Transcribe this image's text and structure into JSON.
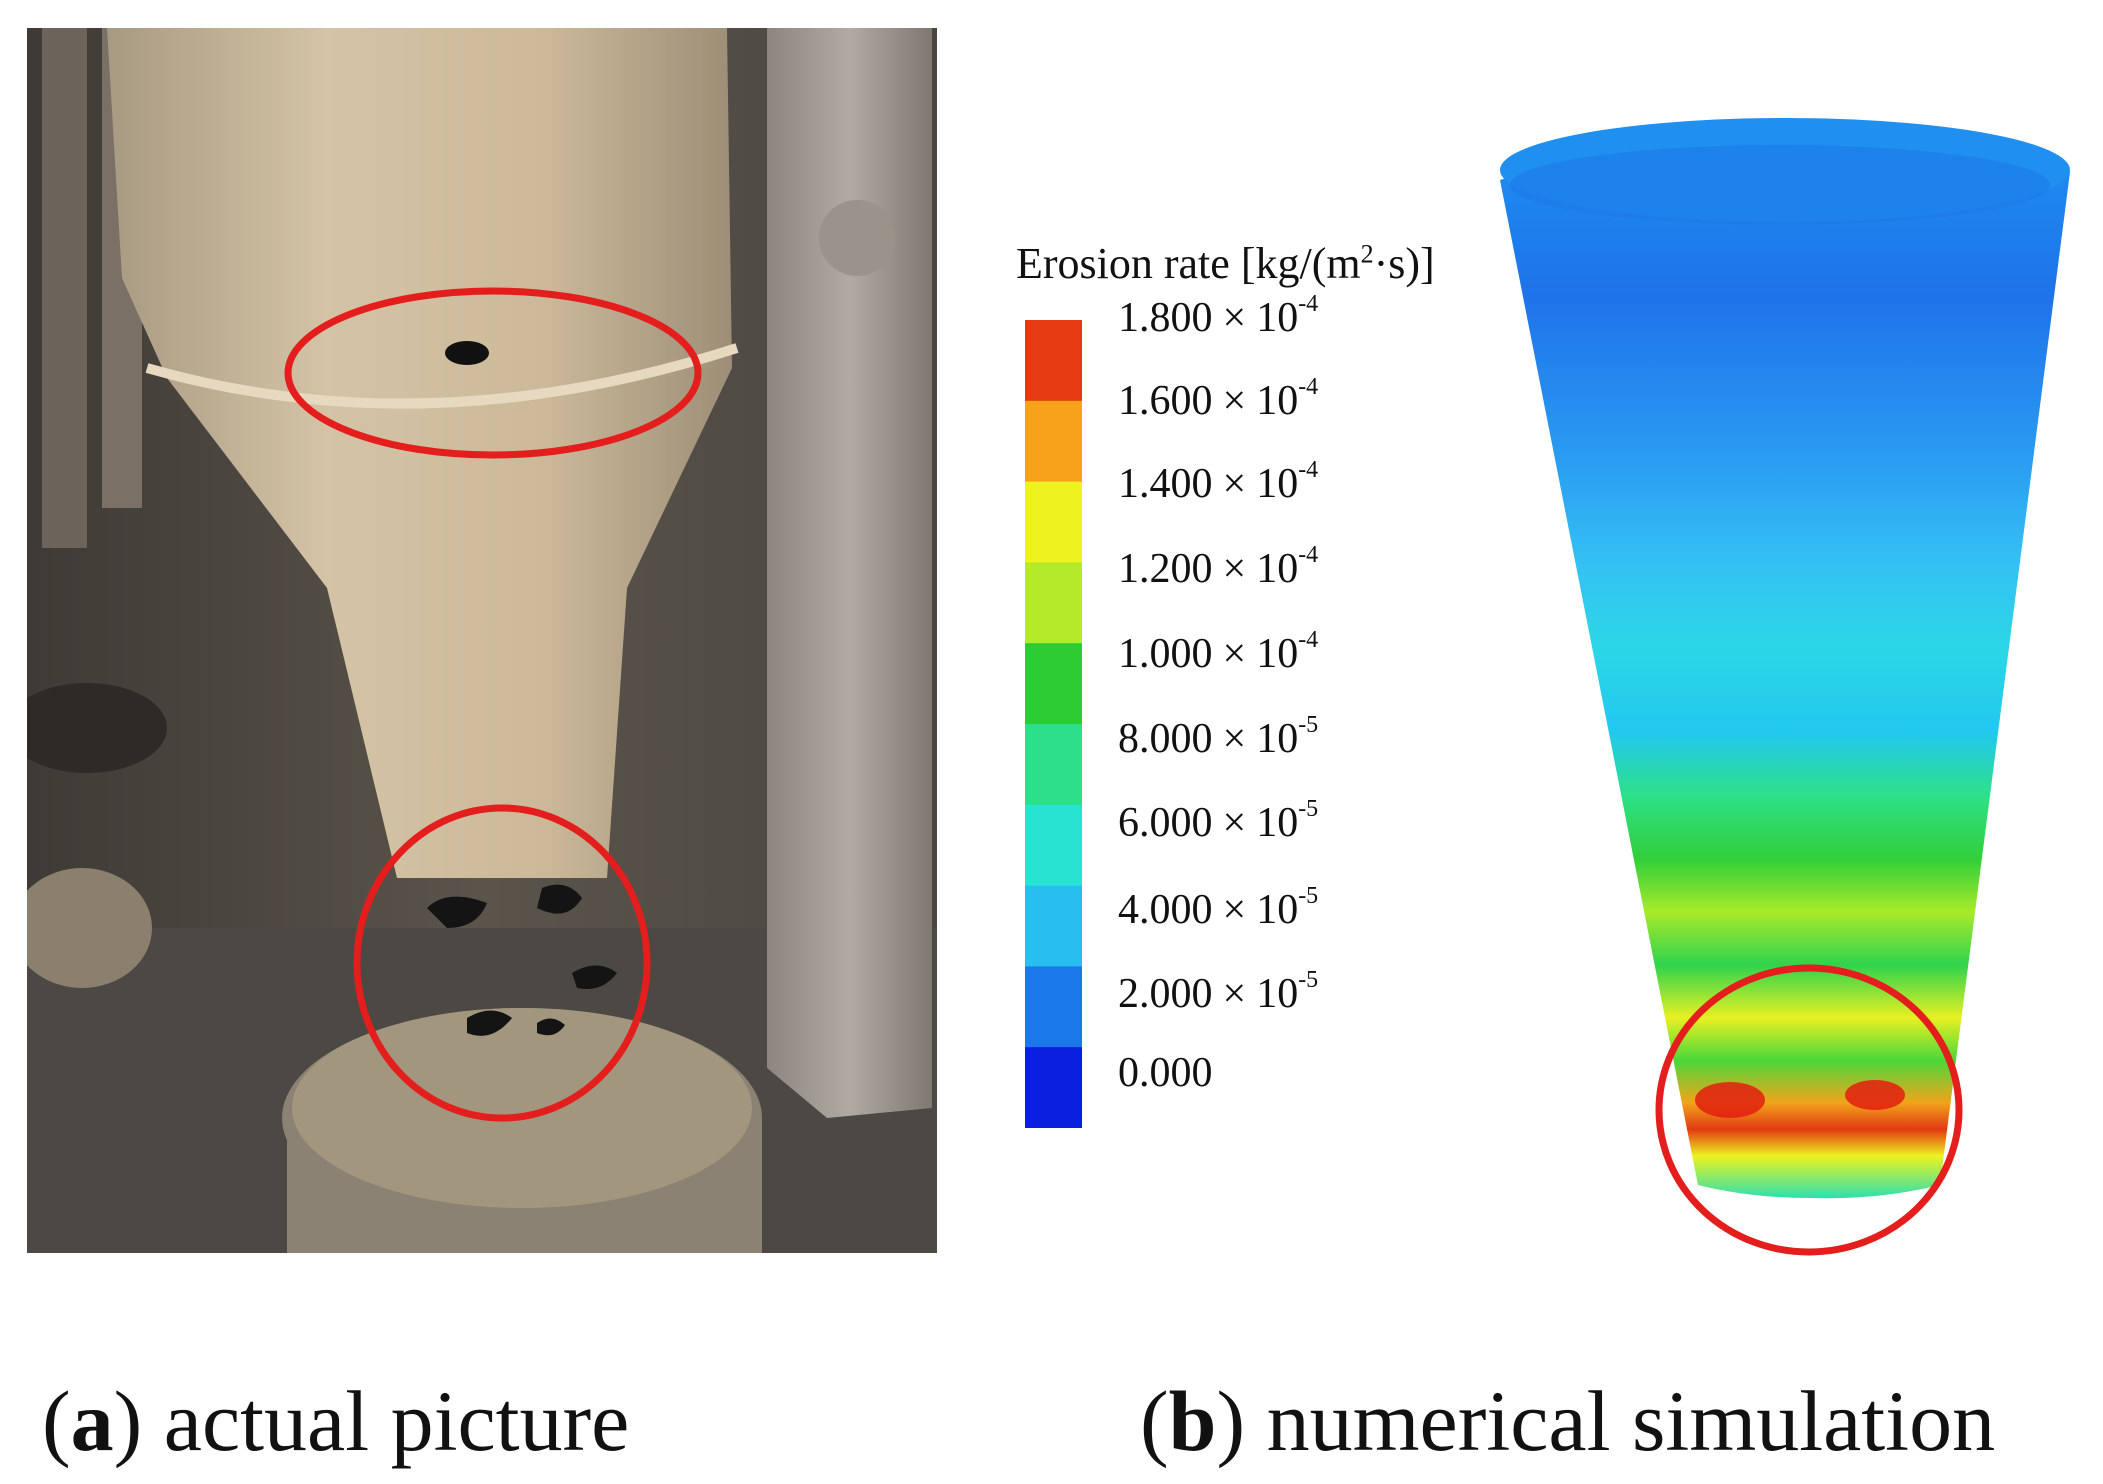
{
  "legend": {
    "title_main": "Erosion rate [kg/(m",
    "title_sup": "2",
    "title_tail": "·s)]",
    "ticks": [
      {
        "mantissa": "1.800",
        "times": "×",
        "base": "10",
        "exp": "-4"
      },
      {
        "mantissa": "1.600",
        "times": "×",
        "base": "10",
        "exp": "-4"
      },
      {
        "mantissa": "1.400",
        "times": "×",
        "base": "10",
        "exp": "-4"
      },
      {
        "mantissa": "1.200",
        "times": "×",
        "base": "10",
        "exp": "-4"
      },
      {
        "mantissa": "1.000",
        "times": "×",
        "base": "10",
        "exp": "-4"
      },
      {
        "mantissa": "8.000",
        "times": "×",
        "base": "10",
        "exp": "-5"
      },
      {
        "mantissa": "6.000",
        "times": "×",
        "base": "10",
        "exp": "-5"
      },
      {
        "mantissa": "4.000",
        "times": "×",
        "base": "10",
        "exp": "-5"
      },
      {
        "mantissa": "2.000",
        "times": "×",
        "base": "10",
        "exp": "-5"
      },
      {
        "mantissa": "0.000",
        "times": "",
        "base": "",
        "exp": ""
      }
    ],
    "colors": [
      "#e63a12",
      "#f7a21a",
      "#eef21f",
      "#b4ea2a",
      "#2ccd33",
      "#2ce08a",
      "#26e3d2",
      "#28bff0",
      "#1b78e8",
      "#0a1fe0"
    ]
  },
  "captions": {
    "a_letter": "a",
    "a_text": " actual picture",
    "b_letter": "b",
    "b_text": " numerical simulation",
    "open": "(",
    "close": ")"
  },
  "highlight_color": "#e41d1d"
}
